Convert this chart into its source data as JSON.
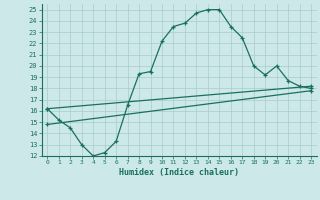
{
  "xlabel": "Humidex (Indice chaleur)",
  "bg_color": "#cce8e8",
  "grid_color": "#aacccc",
  "line_color": "#1a7060",
  "xlim": [
    -0.5,
    23.5
  ],
  "ylim": [
    12,
    25.5
  ],
  "xticks": [
    0,
    1,
    2,
    3,
    4,
    5,
    6,
    7,
    8,
    9,
    10,
    11,
    12,
    13,
    14,
    15,
    16,
    17,
    18,
    19,
    20,
    21,
    22,
    23
  ],
  "yticks": [
    12,
    13,
    14,
    15,
    16,
    17,
    18,
    19,
    20,
    21,
    22,
    23,
    24,
    25
  ],
  "curve1_x": [
    0,
    1,
    2,
    3,
    4,
    5,
    6,
    7,
    8,
    9,
    10,
    11,
    12,
    13,
    14,
    15,
    16,
    17,
    18,
    19,
    20,
    21,
    22,
    23
  ],
  "curve1_y": [
    16.2,
    15.2,
    14.5,
    13.0,
    12.0,
    12.3,
    13.3,
    16.5,
    19.3,
    19.5,
    22.2,
    23.5,
    23.8,
    24.7,
    25.0,
    25.0,
    23.5,
    22.5,
    20.0,
    19.2,
    20.0,
    18.7,
    18.2,
    18.0
  ],
  "line2_x": [
    0,
    23
  ],
  "line2_y": [
    16.2,
    18.2
  ],
  "line3_x": [
    0,
    23
  ],
  "line3_y": [
    14.8,
    17.8
  ]
}
